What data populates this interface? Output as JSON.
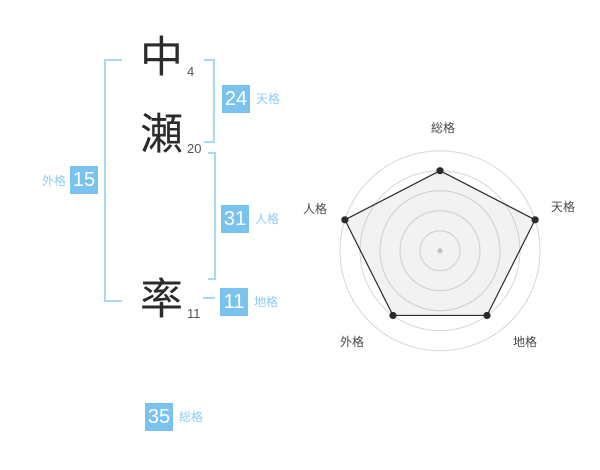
{
  "name": {
    "characters": [
      {
        "char": "中",
        "strokes": "4"
      },
      {
        "char": "瀬",
        "strokes": "20"
      },
      {
        "char": "率",
        "strokes": "11"
      }
    ]
  },
  "categories": {
    "gaikaku": {
      "label": "外格",
      "value": "15"
    },
    "tenkaku": {
      "label": "天格",
      "value": "24"
    },
    "jinkaku": {
      "label": "人格",
      "value": "31"
    },
    "chikaku": {
      "label": "地格",
      "value": "11"
    },
    "soukaku": {
      "label": "総格",
      "value": "35"
    }
  },
  "colors": {
    "accent_blue": "#79c3ee",
    "bracket_blue": "#a8d8f2",
    "label_blue": "#8bcdf4",
    "kanji_color": "#2b2b2b",
    "stroke_number_color": "#555555"
  },
  "chart_data": {
    "type": "radar",
    "categories": [
      "総格",
      "天格",
      "地格",
      "外格",
      "人格"
    ],
    "values": [
      4,
      5,
      4,
      4,
      5
    ],
    "max": 5,
    "rings": 5,
    "grid_shape": "circles",
    "raw_scores": {
      "総格": 35,
      "天格": 24,
      "地格": 11,
      "外格": 15,
      "人格": 31
    },
    "ring_color": "#d6d6d6",
    "line_color": "#2a2a2a",
    "fill_color": "rgba(150,150,150,0.12)",
    "label_color": "#4a4a4a",
    "center_dot_color": "#c5c5c5",
    "legend_position": "around-axes"
  }
}
